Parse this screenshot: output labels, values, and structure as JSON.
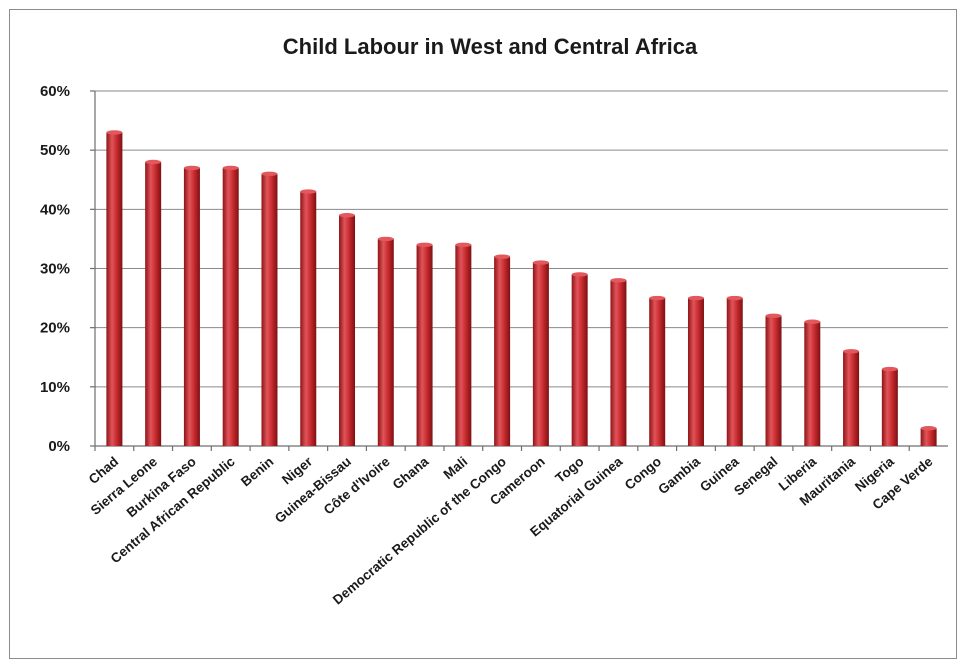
{
  "chart_data": {
    "type": "bar",
    "title": "Child Labour in West and Central Africa",
    "xlabel": "",
    "ylabel": "",
    "ylim": [
      0,
      60
    ],
    "y_ticks": [
      "0%",
      "10%",
      "20%",
      "30%",
      "40%",
      "50%",
      "60%"
    ],
    "grid": true,
    "legend": "none",
    "bar_color": "#c0282b",
    "categories": [
      "Chad",
      "Sierra Leone",
      "Burkina Faso",
      "Central African Republic",
      "Benin",
      "Niger",
      "Guinea-Bissau",
      "Côte d'Ivoire",
      "Ghana",
      "Mali",
      "Democratic Republic of the Congo",
      "Cameroon",
      "Togo",
      "Equatorial Guinea",
      "Congo",
      "Gambia",
      "Guinea",
      "Senegal",
      "Liberia",
      "Mauritania",
      "Nigeria",
      "Cape Verde"
    ],
    "values": [
      53,
      48,
      47,
      47,
      46,
      43,
      39,
      35,
      34,
      34,
      32,
      31,
      29,
      28,
      25,
      25,
      25,
      22,
      21,
      16,
      13,
      3
    ]
  }
}
